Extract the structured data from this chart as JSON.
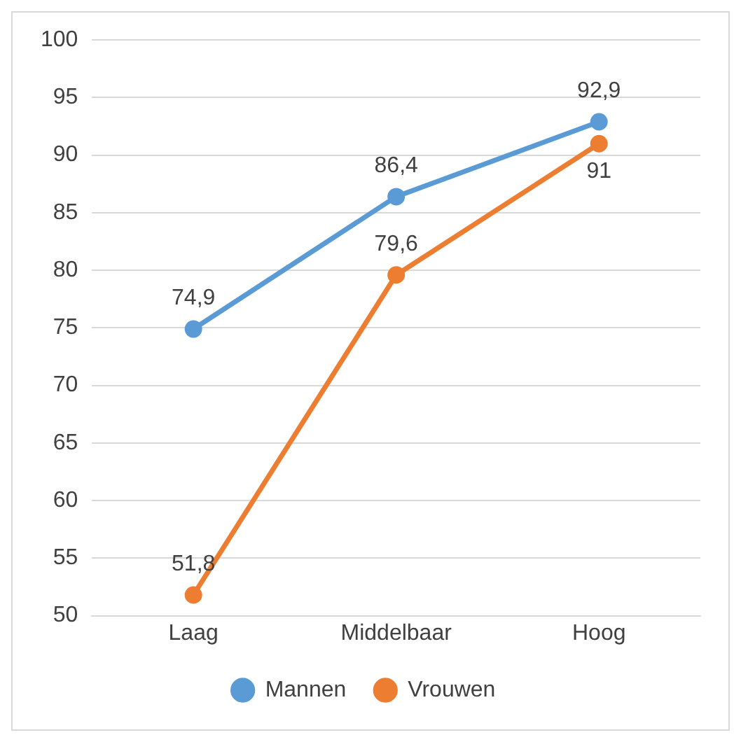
{
  "chart_data": {
    "type": "line",
    "categories": [
      "Laag",
      "Middelbaar",
      "Hoog"
    ],
    "series": [
      {
        "name": "Mannen",
        "color": "#5b9bd5",
        "values": [
          74.9,
          86.4,
          92.9
        ],
        "value_labels": [
          "74,9",
          "86,4",
          "92,9"
        ]
      },
      {
        "name": "Vrouwen",
        "color": "#ed7d31",
        "values": [
          51.8,
          79.6,
          91
        ],
        "value_labels": [
          "51,8",
          "79,6",
          "91"
        ]
      }
    ],
    "ylim": [
      50,
      100
    ],
    "yticks": [
      50,
      55,
      60,
      65,
      70,
      75,
      80,
      85,
      90,
      95,
      100
    ],
    "grid": "y",
    "legend": "bottom",
    "marker": "circle",
    "line_style": "solid"
  }
}
